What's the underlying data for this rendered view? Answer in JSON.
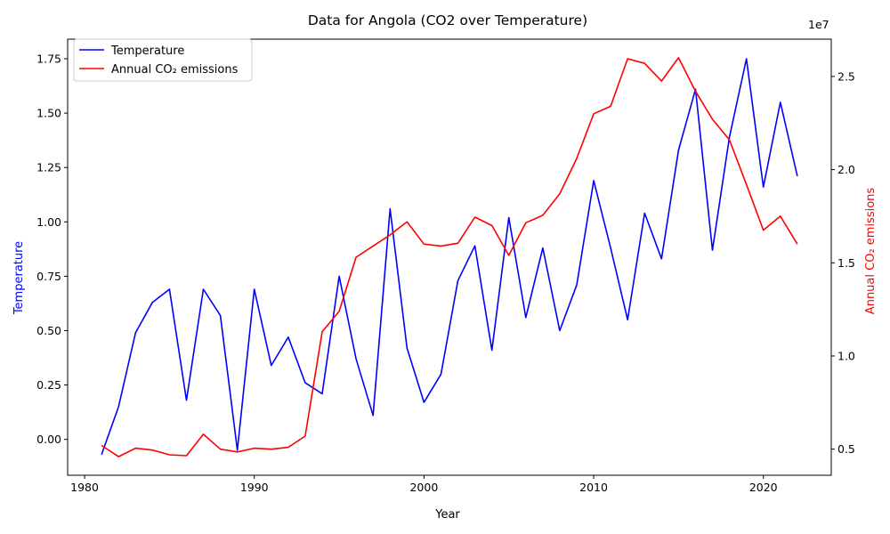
{
  "chart_data": {
    "type": "line",
    "title": "Data for Angola (CO2 over Temperature)",
    "xlabel": "Year",
    "ylabel": "Temperature",
    "y2label": "Annual CO₂ emissions",
    "y2_offset_text": "1e7",
    "xlim": [
      1979,
      2024
    ],
    "ylim": [
      -0.165,
      1.84
    ],
    "y2lim": [
      3600000,
      27000000
    ],
    "x_ticks": [
      1980,
      1990,
      2000,
      2010,
      2020
    ],
    "x_tick_labels": [
      "1980",
      "1990",
      "2000",
      "2010",
      "2020"
    ],
    "y_ticks": [
      0,
      0.25,
      0.5,
      0.75,
      1.0,
      1.25,
      1.5,
      1.75
    ],
    "y_tick_labels": [
      "0.00",
      "0.25",
      "0.50",
      "0.75",
      "1.00",
      "1.25",
      "1.50",
      "1.75"
    ],
    "y2_ticks": [
      5000000,
      10000000,
      15000000,
      20000000,
      25000000
    ],
    "y2_tick_labels": [
      "0.5",
      "1.0",
      "1.5",
      "2.0",
      "2.5"
    ],
    "legend_position": "top-left",
    "x": [
      1981,
      1982,
      1983,
      1984,
      1985,
      1986,
      1987,
      1988,
      1989,
      1990,
      1991,
      1992,
      1993,
      1994,
      1995,
      1996,
      1997,
      1998,
      1999,
      2000,
      2001,
      2002,
      2003,
      2004,
      2005,
      2006,
      2007,
      2008,
      2009,
      2010,
      2011,
      2012,
      2013,
      2014,
      2015,
      2016,
      2017,
      2018,
      2019,
      2020,
      2021,
      2022
    ],
    "series": [
      {
        "name": "Temperature",
        "axis": "left",
        "color": "#0000ff",
        "values": [
          -0.07,
          0.15,
          0.49,
          0.63,
          0.69,
          0.18,
          0.69,
          0.57,
          -0.05,
          0.69,
          0.34,
          0.47,
          0.26,
          0.21,
          0.75,
          0.37,
          0.11,
          1.06,
          0.42,
          0.17,
          0.3,
          0.73,
          0.89,
          0.41,
          1.02,
          0.56,
          0.88,
          0.5,
          0.71,
          1.19,
          0.88,
          0.55,
          1.04,
          0.83,
          1.33,
          1.61,
          0.87,
          1.39,
          1.75,
          1.16,
          1.55,
          1.21
        ]
      },
      {
        "name": "Annual CO₂ emissions",
        "axis": "right",
        "color": "#ff0000",
        "values": [
          5200000,
          4600000,
          5050000,
          4950000,
          4700000,
          4650000,
          5800000,
          5000000,
          4850000,
          5050000,
          5000000,
          5100000,
          5700000,
          11300000,
          12400000,
          15300000,
          15900000,
          16500000,
          17200000,
          16000000,
          15900000,
          16050000,
          17450000,
          17000000,
          15400000,
          17150000,
          17550000,
          18700000,
          20600000,
          23000000,
          23400000,
          25950000,
          25700000,
          24750000,
          26000000,
          24200000,
          22700000,
          21600000,
          19200000,
          16750000,
          17500000,
          16000000
        ]
      }
    ]
  }
}
